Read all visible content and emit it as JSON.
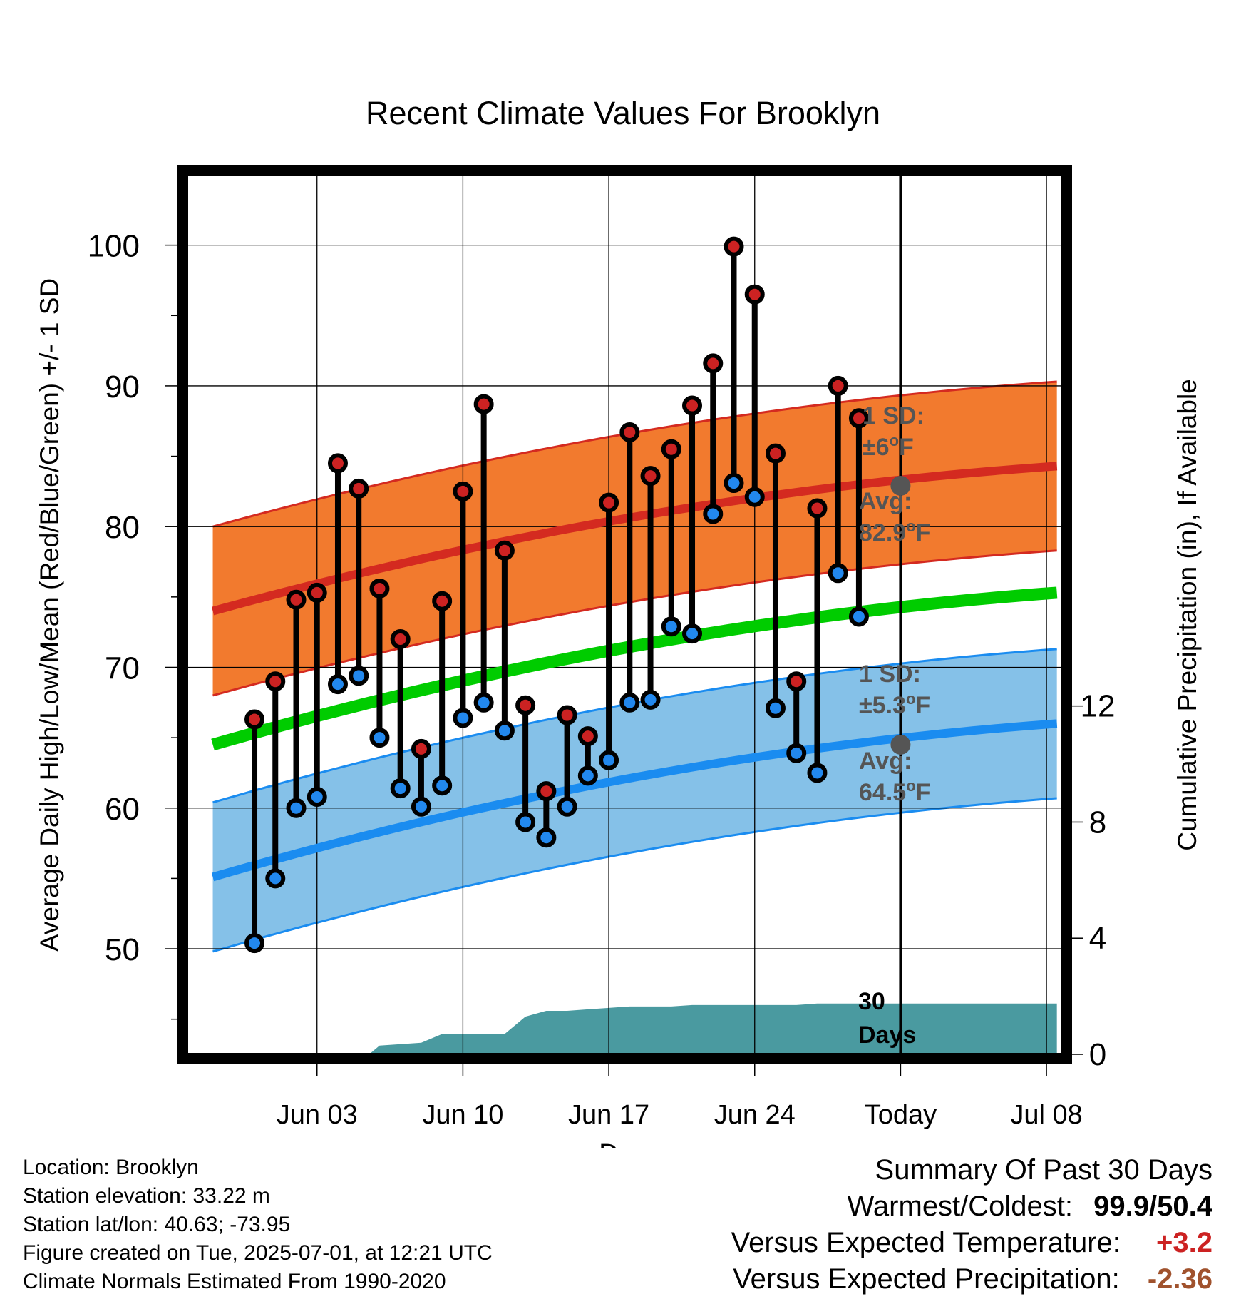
{
  "chart_data": {
    "type": "line",
    "title": "Recent Climate Values For Brooklyn",
    "xlabel": "Day",
    "ylabel": "Average Daily High/Low/Mean (Red/Blue/Green) +/- 1 SD",
    "y2label": "Cumulative Precipitation (in), If Available",
    "ylim": [
      42.5,
      105
    ],
    "y2lim": [
      0,
      30.3
    ],
    "xlim": [
      -3.25,
      38.75
    ],
    "grid": true,
    "x_ticks": [
      {
        "day": 3,
        "label": "Jun 03"
      },
      {
        "day": 10,
        "label": "Jun 10"
      },
      {
        "day": 17,
        "label": "Jun 17"
      },
      {
        "day": 24,
        "label": "Jun 24"
      },
      {
        "day": 31,
        "label": "Today"
      },
      {
        "day": 38,
        "label": "Jul 08"
      }
    ],
    "y_ticks": [
      50,
      60,
      70,
      80,
      90,
      100
    ],
    "y2_ticks": [
      0,
      4,
      8,
      12
    ],
    "today_day": 31,
    "series": [
      {
        "name": "High",
        "color": "#cc2222",
        "days": [
          0,
          1,
          2,
          3,
          4,
          5,
          6,
          7,
          8,
          9,
          10,
          11,
          12,
          13,
          14,
          15,
          16,
          17,
          18,
          19,
          20,
          21,
          22,
          23,
          24,
          25,
          26,
          27,
          28,
          29,
          30
        ],
        "values": [
          66.3,
          69.0,
          74.8,
          75.3,
          84.5,
          82.7,
          75.6,
          72.0,
          64.2,
          74.7,
          82.5,
          88.7,
          78.3,
          67.3,
          61.2,
          66.6,
          65.1,
          81.7,
          86.7,
          83.6,
          85.5,
          88.6,
          91.6,
          99.9,
          96.5,
          85.2,
          69.0,
          81.3,
          90.0,
          87.7,
          null
        ]
      },
      {
        "name": "Low",
        "color": "#2288ee",
        "days": [
          0,
          1,
          2,
          3,
          4,
          5,
          6,
          7,
          8,
          9,
          10,
          11,
          12,
          13,
          14,
          15,
          16,
          17,
          18,
          19,
          20,
          21,
          22,
          23,
          24,
          25,
          26,
          27,
          28,
          29,
          30
        ],
        "values": [
          50.4,
          55.0,
          60.0,
          60.8,
          68.8,
          69.4,
          65.0,
          61.4,
          60.1,
          61.6,
          66.4,
          67.5,
          65.5,
          59.0,
          57.9,
          60.1,
          62.3,
          63.4,
          67.5,
          67.7,
          72.9,
          72.4,
          80.9,
          83.1,
          82.1,
          67.1,
          63.9,
          62.5,
          76.7,
          73.6,
          null
        ]
      },
      {
        "name": "Normal High",
        "color": "#d42a20",
        "days": [
          -2,
          38.5
        ],
        "start": 74.0,
        "end": 84.3,
        "sd": 6.0
      },
      {
        "name": "Normal Low",
        "color": "#1a8cf0",
        "days": [
          -2,
          38.5
        ],
        "start": 55.1,
        "end": 66.0,
        "sd": 5.3
      },
      {
        "name": "Normal Mean",
        "color": "#00cc00",
        "days": [
          -2,
          38.5
        ],
        "start": 64.5,
        "end": 75.3
      }
    ],
    "precip": {
      "color": "#4a9aa0",
      "days": [
        -2,
        4,
        5,
        5.5,
        6,
        7,
        8,
        9,
        10,
        11,
        12,
        13,
        14,
        15,
        16,
        17,
        18,
        19,
        20,
        21,
        22,
        23,
        24,
        25,
        26,
        27,
        28,
        29,
        30,
        31,
        38.5
      ],
      "values": [
        0,
        0,
        0,
        0,
        0.3,
        0.35,
        0.4,
        0.7,
        0.7,
        0.7,
        0.7,
        1.3,
        1.5,
        1.5,
        1.55,
        1.6,
        1.65,
        1.65,
        1.65,
        1.7,
        1.7,
        1.7,
        1.7,
        1.7,
        1.7,
        1.75,
        1.75,
        1.75,
        1.75,
        1.75,
        1.75
      ]
    },
    "annotations": {
      "high_sd_line1": "1 SD:",
      "high_sd_line2": "±6",
      "high_avg_line1": "Avg:",
      "high_avg_line2": "82.9",
      "high_avg_value": 82.9,
      "low_sd_line1": "1 SD:",
      "low_sd_line2": "±5.3",
      "low_avg_line1": "Avg:",
      "low_avg_line2": "64.5",
      "low_avg_value": 64.5,
      "deg_sup": "o",
      "unit_F": "F",
      "days_line1": "30",
      "days_line2": "Days"
    }
  },
  "footer_left": {
    "location": "Location: Brooklyn",
    "elevation": "Station elevation: 33.22 m",
    "latlon": "Station lat/lon: 40.63; -73.95",
    "created": "Figure created on Tue, 2025-07-01, at 12:21 UTC",
    "normals": "Climate Normals Estimated From 1990-2020"
  },
  "summary": {
    "heading": "Summary Of Past 30 Days",
    "warm_cold_label": "Warmest/Coldest:",
    "warm_value": "99.9",
    "slash": "/",
    "cold_value": "50.4",
    "temp_label": "Versus Expected Temperature:",
    "temp_value": "+3.2",
    "temp_color": "#cc2222",
    "precip_label": "Versus Expected Precipitation:",
    "precip_value": "-2.36",
    "precip_color": "#a0522d"
  }
}
